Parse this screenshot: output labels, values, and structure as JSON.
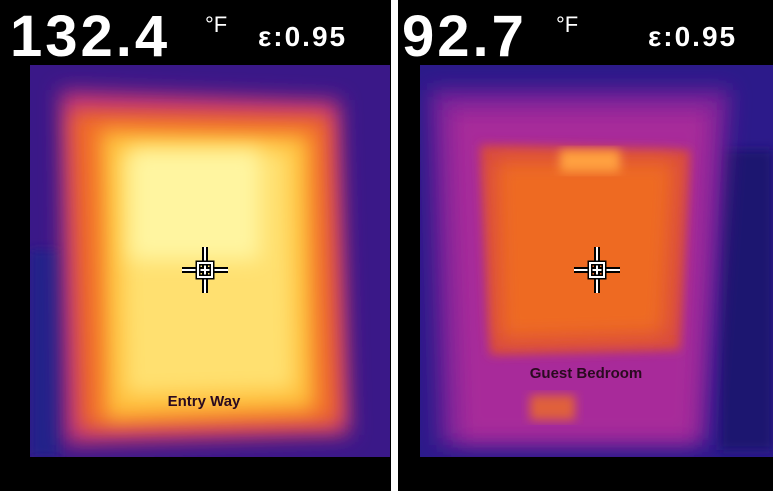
{
  "panels": [
    {
      "reading": "132.4",
      "unit": "°F",
      "emissivity": "ε:0.95",
      "label": "Entry Way"
    },
    {
      "reading": "92.7",
      "unit": "°F",
      "emissivity": "ε:0.95",
      "label": "Guest Bedroom"
    }
  ]
}
